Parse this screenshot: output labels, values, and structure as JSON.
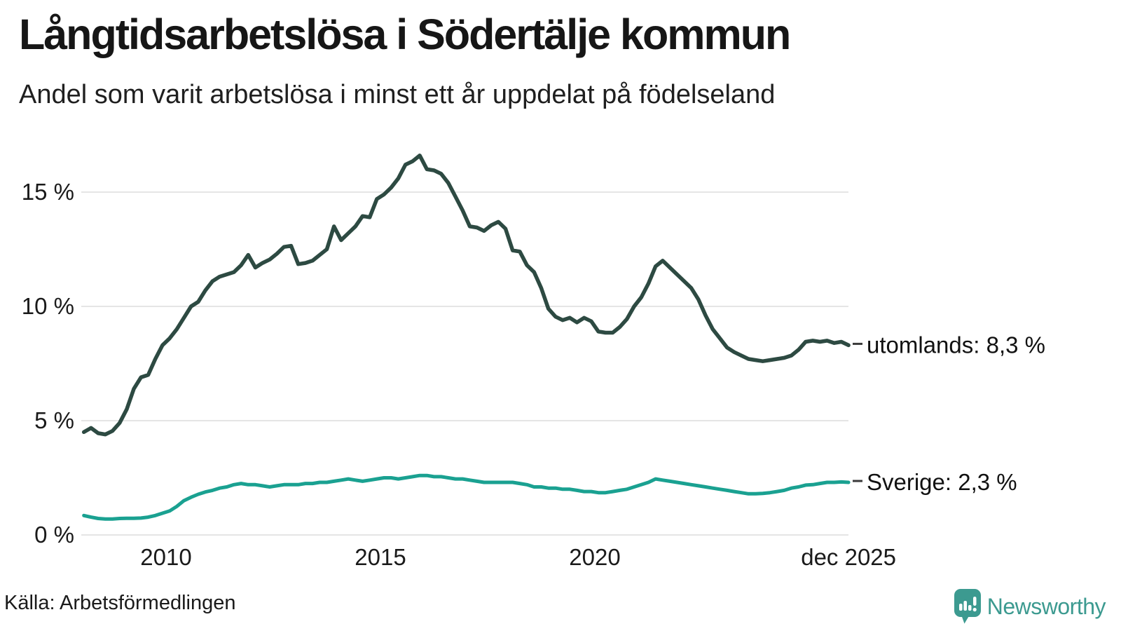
{
  "header": {
    "title": "Långtidsarbetslösa i Södertälje kommun",
    "subtitle": "Andel som varit arbetslösa i minst ett år uppdelat på födelseland"
  },
  "footer": {
    "source": "Källa: Arbetsförmedlingen",
    "brand": "Newsworthy"
  },
  "chart_data": {
    "type": "line",
    "title": "Långtidsarbetslösa i Södertälje kommun",
    "subtitle": "Andel som varit arbetslösa i minst ett år uppdelat på födelseland",
    "grid": "horizontal-only",
    "legend_position": "right-end-labels",
    "background": "#ffffff",
    "gridline_color": "#e5e5e5",
    "text_color": "#1a1a1a",
    "label_dash_color": "#3a3a3a",
    "y_axis": {
      "range": [
        0,
        17
      ],
      "ticks": [
        {
          "value": 15,
          "label": "15 %"
        },
        {
          "value": 10,
          "label": "10 %"
        },
        {
          "value": 5,
          "label": "5 %"
        },
        {
          "value": 0,
          "label": "0 %"
        }
      ]
    },
    "x_axis": {
      "range_years": [
        2008.083,
        2025.917
      ],
      "ticks": [
        {
          "year": 2010,
          "label": "2010"
        },
        {
          "year": 2015,
          "label": "2015"
        },
        {
          "year": 2020,
          "label": "2020"
        },
        {
          "year": 2025.917,
          "label": "dec 2025"
        }
      ]
    },
    "series": [
      {
        "name": "utomlands",
        "label": "utomlands: 8,3 %",
        "end_value": 8.3,
        "color": "#2d4a42",
        "stroke_width": 5.5,
        "start_year": 2008.083,
        "step_years": 0.16667,
        "values": [
          4.5,
          4.68,
          4.45,
          4.4,
          4.55,
          4.9,
          5.5,
          6.4,
          6.9,
          7.0,
          7.7,
          8.3,
          8.6,
          9.0,
          9.5,
          10.0,
          10.2,
          10.7,
          11.1,
          11.3,
          11.4,
          11.5,
          11.8,
          12.25,
          11.7,
          11.9,
          12.05,
          12.3,
          12.6,
          12.65,
          11.85,
          11.9,
          12.0,
          12.25,
          12.5,
          13.5,
          12.9,
          13.2,
          13.5,
          13.95,
          13.9,
          14.7,
          14.9,
          15.2,
          15.6,
          16.2,
          16.35,
          16.6,
          16.0,
          15.95,
          15.8,
          15.4,
          14.8,
          14.2,
          13.5,
          13.45,
          13.3,
          13.55,
          13.7,
          13.4,
          12.45,
          12.4,
          11.8,
          11.5,
          10.8,
          9.9,
          9.55,
          9.4,
          9.5,
          9.3,
          9.5,
          9.35,
          8.9,
          8.85,
          8.85,
          9.1,
          9.45,
          10.0,
          10.4,
          11.0,
          11.75,
          12.0,
          11.7,
          11.4,
          11.1,
          10.8,
          10.3,
          9.6,
          9.0,
          8.6,
          8.2,
          8.0,
          7.85,
          7.7,
          7.65,
          7.6,
          7.65,
          7.7,
          7.75,
          7.85,
          8.1,
          8.45,
          8.5,
          8.45,
          8.5,
          8.4,
          8.45,
          8.3
        ]
      },
      {
        "name": "Sverige",
        "label": "Sverige: 2,3 %",
        "end_value": 2.3,
        "color": "#1aa191",
        "stroke_width": 5,
        "start_year": 2008.083,
        "step_years": 0.16667,
        "values": [
          0.85,
          0.78,
          0.72,
          0.7,
          0.7,
          0.72,
          0.73,
          0.73,
          0.74,
          0.78,
          0.85,
          0.95,
          1.05,
          1.25,
          1.5,
          1.65,
          1.78,
          1.88,
          1.95,
          2.05,
          2.1,
          2.2,
          2.25,
          2.2,
          2.2,
          2.15,
          2.1,
          2.15,
          2.2,
          2.2,
          2.2,
          2.25,
          2.25,
          2.3,
          2.3,
          2.35,
          2.4,
          2.45,
          2.4,
          2.35,
          2.4,
          2.45,
          2.5,
          2.5,
          2.45,
          2.5,
          2.55,
          2.6,
          2.6,
          2.55,
          2.55,
          2.5,
          2.45,
          2.45,
          2.4,
          2.35,
          2.3,
          2.3,
          2.3,
          2.3,
          2.3,
          2.25,
          2.2,
          2.1,
          2.1,
          2.05,
          2.05,
          2.0,
          2.0,
          1.95,
          1.9,
          1.9,
          1.85,
          1.85,
          1.9,
          1.95,
          2.0,
          2.1,
          2.2,
          2.3,
          2.45,
          2.4,
          2.35,
          2.3,
          2.25,
          2.2,
          2.15,
          2.1,
          2.05,
          2.0,
          1.95,
          1.9,
          1.85,
          1.8,
          1.8,
          1.82,
          1.85,
          1.9,
          1.95,
          2.05,
          2.1,
          2.18,
          2.2,
          2.25,
          2.3,
          2.3,
          2.32,
          2.3
        ]
      }
    ],
    "brand_color": "#3c9a90"
  }
}
